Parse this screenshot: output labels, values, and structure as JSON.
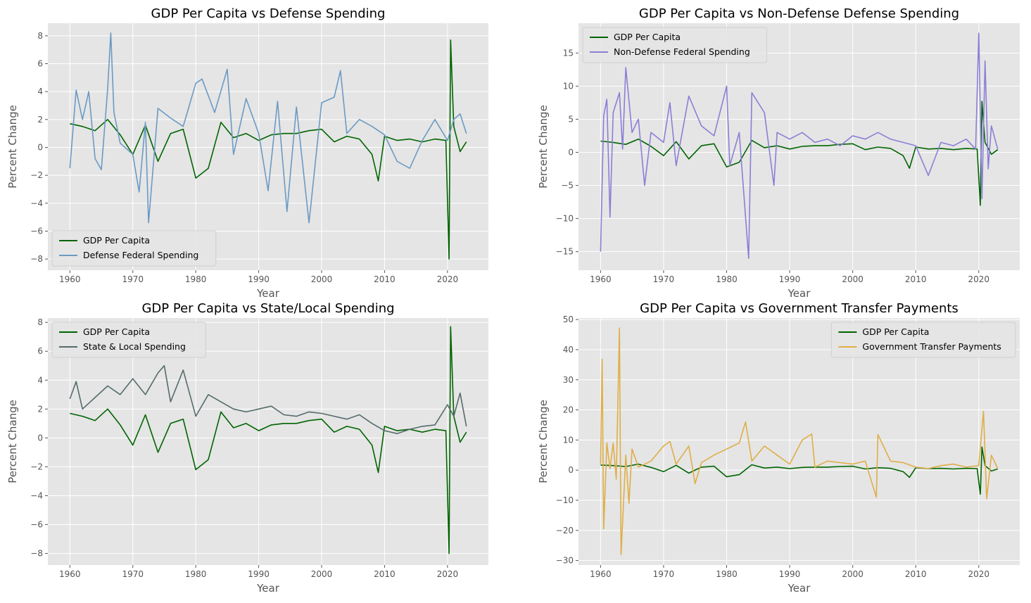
{
  "colors": {
    "gdp": "#006400",
    "defense": "#6b9ac4",
    "nondefense": "#8a7fd6",
    "statelocal": "#556b6b",
    "transfer": "#dfae47",
    "plot_background": "#e5e5e5",
    "grid": "#ffffff",
    "axis_text": "#555555"
  },
  "chart_data": [
    {
      "type": "line",
      "title": "GDP Per Capita vs Defense Spending",
      "xlabel": "Year",
      "ylabel": "Percent Change",
      "xlim": [
        1956.5,
        2026.5
      ],
      "ylim": [
        -8.8,
        8.9
      ],
      "xticks": [
        1960,
        1970,
        1980,
        1990,
        2000,
        2010,
        2020
      ],
      "yticks": [
        -8,
        -6,
        -4,
        -2,
        0,
        2,
        4,
        6,
        8
      ],
      "grid": true,
      "legend_position": "lower-left",
      "series": [
        {
          "name": "GDP Per Capita",
          "color_key": "gdp",
          "x": [
            1960,
            1962,
            1964,
            1966,
            1968,
            1970,
            1972,
            1974,
            1976,
            1978,
            1980,
            1982,
            1984,
            1986,
            1988,
            1990,
            1992,
            1994,
            1996,
            1998,
            2000,
            2002,
            2004,
            2006,
            2008,
            2009,
            2010,
            2012,
            2014,
            2016,
            2018,
            2019.75,
            2020.25,
            2020.5,
            2021,
            2022,
            2023
          ],
          "values": [
            1.7,
            1.5,
            1.2,
            2.0,
            0.9,
            -0.5,
            1.6,
            -1.0,
            1.0,
            1.3,
            -2.2,
            -1.5,
            1.8,
            0.7,
            1.0,
            0.5,
            0.9,
            1.0,
            1.0,
            1.2,
            1.3,
            0.4,
            0.8,
            0.6,
            -0.5,
            -2.4,
            0.8,
            0.5,
            0.6,
            0.4,
            0.6,
            0.5,
            -8.0,
            7.7,
            1.5,
            -0.3,
            0.4
          ]
        },
        {
          "name": "Defense Federal Spending",
          "color_key": "defense",
          "x": [
            1960,
            1961,
            1962,
            1963,
            1964,
            1965,
            1966,
            1966.5,
            1967,
            1968,
            1970,
            1971,
            1972,
            1972.5,
            1974,
            1976,
            1978,
            1980,
            1981,
            1983,
            1985,
            1986,
            1988,
            1990,
            1991.5,
            1993,
            1994.5,
            1996,
            1998,
            2000,
            2002,
            2003,
            2004,
            2006,
            2008,
            2010,
            2012,
            2014,
            2016,
            2018,
            2020,
            2021,
            2022,
            2023
          ],
          "values": [
            -1.5,
            4.1,
            2.0,
            4.0,
            -0.8,
            -1.6,
            4.2,
            8.2,
            2.5,
            0.3,
            -0.5,
            -3.2,
            1.8,
            -5.4,
            2.8,
            2.1,
            1.5,
            4.6,
            4.9,
            2.5,
            5.6,
            -0.5,
            3.5,
            1.0,
            -3.1,
            3.3,
            -4.6,
            2.9,
            -5.4,
            3.2,
            3.6,
            5.5,
            1.0,
            2.0,
            1.5,
            0.9,
            -1.0,
            -1.5,
            0.5,
            2.0,
            0.5,
            2.0,
            2.4,
            1.0
          ]
        }
      ]
    },
    {
      "type": "line",
      "title": "GDP Per Capita vs Non-Defense Defense Spending",
      "xlabel": "Year",
      "ylabel": "Percent Change",
      "xlim": [
        1956.5,
        2026.5
      ],
      "ylim": [
        -17.8,
        19.5
      ],
      "xticks": [
        1960,
        1970,
        1980,
        1990,
        2000,
        2010,
        2020
      ],
      "yticks": [
        -15,
        -10,
        -5,
        0,
        5,
        10,
        15
      ],
      "grid": true,
      "legend_position": "top-left",
      "series": [
        {
          "name": "GDP Per Capita",
          "color_key": "gdp",
          "x": [
            1960,
            1962,
            1964,
            1966,
            1968,
            1970,
            1972,
            1974,
            1976,
            1978,
            1980,
            1982,
            1984,
            1986,
            1988,
            1990,
            1992,
            1994,
            1996,
            1998,
            2000,
            2002,
            2004,
            2006,
            2008,
            2009,
            2010,
            2012,
            2014,
            2016,
            2018,
            2019.75,
            2020.25,
            2020.5,
            2021,
            2022,
            2023
          ],
          "values": [
            1.7,
            1.5,
            1.2,
            2.0,
            0.9,
            -0.5,
            1.6,
            -1.0,
            1.0,
            1.3,
            -2.2,
            -1.5,
            1.8,
            0.7,
            1.0,
            0.5,
            0.9,
            1.0,
            1.0,
            1.2,
            1.3,
            0.4,
            0.8,
            0.6,
            -0.5,
            -2.4,
            0.8,
            0.5,
            0.6,
            0.4,
            0.6,
            0.5,
            -8.0,
            7.7,
            1.5,
            -0.3,
            0.4
          ]
        },
        {
          "name": "Non-Defense Federal Spending",
          "color_key": "nondefense",
          "x": [
            1960,
            1960.5,
            1961,
            1961.5,
            1962,
            1963,
            1963.5,
            1964,
            1965,
            1966,
            1967,
            1968,
            1970,
            1971,
            1972,
            1974,
            1976,
            1978,
            1980,
            1980.5,
            1982,
            1983.5,
            1984,
            1986,
            1987.5,
            1988,
            1990,
            1992,
            1994,
            1996,
            1998,
            2000,
            2002,
            2004,
            2006,
            2008,
            2010,
            2012,
            2014,
            2016,
            2018,
            2019.5,
            2020,
            2020.5,
            2021,
            2021.5,
            2022,
            2023
          ],
          "values": [
            -15.0,
            5.5,
            8.0,
            -9.8,
            6.0,
            9.0,
            0.5,
            12.8,
            3.0,
            5.0,
            -5.0,
            3.0,
            1.5,
            7.5,
            -2.0,
            8.5,
            4.0,
            2.5,
            10.0,
            -2.0,
            3.0,
            -16.0,
            9.0,
            6.0,
            -5.0,
            3.0,
            2.0,
            3.0,
            1.5,
            2.0,
            1.0,
            2.5,
            2.0,
            3.0,
            2.0,
            1.5,
            1.0,
            -3.5,
            1.5,
            1.0,
            2.0,
            0.5,
            18.0,
            -7.0,
            13.8,
            -2.5,
            4.0,
            0.5
          ]
        }
      ]
    },
    {
      "type": "line",
      "title": "GDP Per Capita vs State/Local Spending",
      "xlabel": "Year",
      "ylabel": "Percent Change",
      "xlim": [
        1956.5,
        2026.5
      ],
      "ylim": [
        -8.8,
        8.3
      ],
      "xticks": [
        1960,
        1970,
        1980,
        1990,
        2000,
        2010,
        2020
      ],
      "yticks": [
        -8,
        -6,
        -4,
        -2,
        0,
        2,
        4,
        6,
        8
      ],
      "grid": true,
      "legend_position": "top-left",
      "series": [
        {
          "name": "GDP Per Capita",
          "color_key": "gdp",
          "x": [
            1960,
            1962,
            1964,
            1966,
            1968,
            1970,
            1972,
            1974,
            1976,
            1978,
            1980,
            1982,
            1984,
            1986,
            1988,
            1990,
            1992,
            1994,
            1996,
            1998,
            2000,
            2002,
            2004,
            2006,
            2008,
            2009,
            2010,
            2012,
            2014,
            2016,
            2018,
            2019.75,
            2020.25,
            2020.5,
            2021,
            2022,
            2023
          ],
          "values": [
            1.7,
            1.5,
            1.2,
            2.0,
            0.9,
            -0.5,
            1.6,
            -1.0,
            1.0,
            1.3,
            -2.2,
            -1.5,
            1.8,
            0.7,
            1.0,
            0.5,
            0.9,
            1.0,
            1.0,
            1.2,
            1.3,
            0.4,
            0.8,
            0.6,
            -0.5,
            -2.4,
            0.8,
            0.5,
            0.6,
            0.4,
            0.6,
            0.5,
            -8.0,
            7.7,
            1.5,
            -0.3,
            0.4
          ]
        },
        {
          "name": "State & Local Spending",
          "color_key": "statelocal",
          "x": [
            1960,
            1961,
            1962,
            1964,
            1966,
            1968,
            1970,
            1972,
            1974,
            1975,
            1976,
            1978,
            1980,
            1982,
            1984,
            1986,
            1988,
            1990,
            1992,
            1994,
            1996,
            1998,
            2000,
            2002,
            2004,
            2006,
            2008,
            2010,
            2012,
            2014,
            2016,
            2018,
            2020,
            2021,
            2022,
            2023
          ],
          "values": [
            2.7,
            3.9,
            2.0,
            2.8,
            3.6,
            3.0,
            4.1,
            3.0,
            4.5,
            5.0,
            2.5,
            4.7,
            1.5,
            3.0,
            2.5,
            2.0,
            1.8,
            2.0,
            2.2,
            1.6,
            1.5,
            1.8,
            1.7,
            1.5,
            1.3,
            1.6,
            1.0,
            0.5,
            0.3,
            0.6,
            0.8,
            0.9,
            2.3,
            1.5,
            3.1,
            0.8
          ]
        }
      ]
    },
    {
      "type": "line",
      "title": "GDP Per Capita vs Government Transfer Payments",
      "xlabel": "Year",
      "ylabel": "Percent Change",
      "xlim": [
        1956.5,
        2026.5
      ],
      "ylim": [
        -31.5,
        50.5
      ],
      "xticks": [
        1960,
        1970,
        1980,
        1990,
        2000,
        2010,
        2020
      ],
      "yticks": [
        -30,
        -20,
        -10,
        0,
        10,
        20,
        30,
        40,
        50
      ],
      "grid": true,
      "legend_position": "top-right",
      "series": [
        {
          "name": "GDP Per Capita",
          "color_key": "gdp",
          "x": [
            1960,
            1962,
            1964,
            1966,
            1968,
            1970,
            1972,
            1974,
            1976,
            1978,
            1980,
            1982,
            1984,
            1986,
            1988,
            1990,
            1992,
            1994,
            1996,
            1998,
            2000,
            2002,
            2004,
            2006,
            2008,
            2009,
            2010,
            2012,
            2014,
            2016,
            2018,
            2019.75,
            2020.25,
            2020.5,
            2021,
            2022,
            2023
          ],
          "values": [
            1.7,
            1.5,
            1.2,
            2.0,
            0.9,
            -0.5,
            1.6,
            -1.0,
            1.0,
            1.3,
            -2.2,
            -1.5,
            1.8,
            0.7,
            1.0,
            0.5,
            0.9,
            1.0,
            1.0,
            1.2,
            1.3,
            0.4,
            0.8,
            0.6,
            -0.5,
            -2.4,
            0.8,
            0.5,
            0.6,
            0.4,
            0.6,
            0.5,
            -8.0,
            7.7,
            1.5,
            -0.3,
            0.4
          ]
        },
        {
          "name": "Government Transfer Payments",
          "color_key": "transfer",
          "x": [
            1960,
            1960.25,
            1960.5,
            1961,
            1961.5,
            1962,
            1962.5,
            1963,
            1963.25,
            1964,
            1964.5,
            1965,
            1966,
            1968,
            1970,
            1971,
            1972,
            1974,
            1975,
            1976,
            1978,
            1980,
            1982,
            1983,
            1984,
            1986,
            1988,
            1990,
            1992,
            1993.5,
            1994,
            1996,
            1998,
            2000,
            2002,
            2003.75,
            2004,
            2006,
            2008,
            2010,
            2012,
            2014,
            2016,
            2018,
            2020,
            2020.75,
            2021.25,
            2022,
            2023
          ],
          "values": [
            2.0,
            36.8,
            -19.5,
            9.0,
            0.5,
            9.0,
            -3.0,
            47.2,
            -28.0,
            5.0,
            -11.0,
            7.0,
            1.0,
            3.0,
            8.0,
            9.5,
            2.0,
            8.0,
            -4.5,
            2.5,
            5.0,
            7.0,
            9.0,
            16.0,
            3.0,
            8.0,
            5.0,
            2.0,
            10.0,
            12.0,
            1.0,
            3.0,
            2.5,
            2.0,
            3.0,
            -9.0,
            11.8,
            3.0,
            2.5,
            1.0,
            0.5,
            1.5,
            2.0,
            1.0,
            1.5,
            19.5,
            -9.5,
            5.0,
            0.5
          ]
        }
      ]
    }
  ]
}
